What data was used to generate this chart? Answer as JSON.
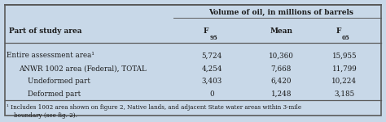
{
  "bg_color": "#c8d8e8",
  "title": "Volume of oil, in millions of barrels",
  "col_headers_display": [
    "F95",
    "Mean",
    "F05"
  ],
  "row_label_header": "Part of study area",
  "rows": [
    {
      "label": "Entire assessment area¹",
      "indent": 0,
      "values": [
        "5,724",
        "10,360",
        "15,955"
      ]
    },
    {
      "label": "ANWR 1002 area (Federal), TOTAL",
      "indent": 1,
      "values": [
        "4,254",
        "7,668",
        "11,799"
      ]
    },
    {
      "label": "Undeformed part",
      "indent": 2,
      "values": [
        "3,403",
        "6,420",
        "10,224"
      ]
    },
    {
      "label": "Deformed part",
      "indent": 2,
      "values": [
        "0",
        "1,248",
        "3,185"
      ]
    }
  ],
  "footnote": "¹ Includes 1002 area shown on figure 2, Native lands, and adjacent State water areas within 3-mile\n    boundary (see fig. 2).",
  "border_color": "#5a5a5a",
  "text_color": "#1a1a1a"
}
